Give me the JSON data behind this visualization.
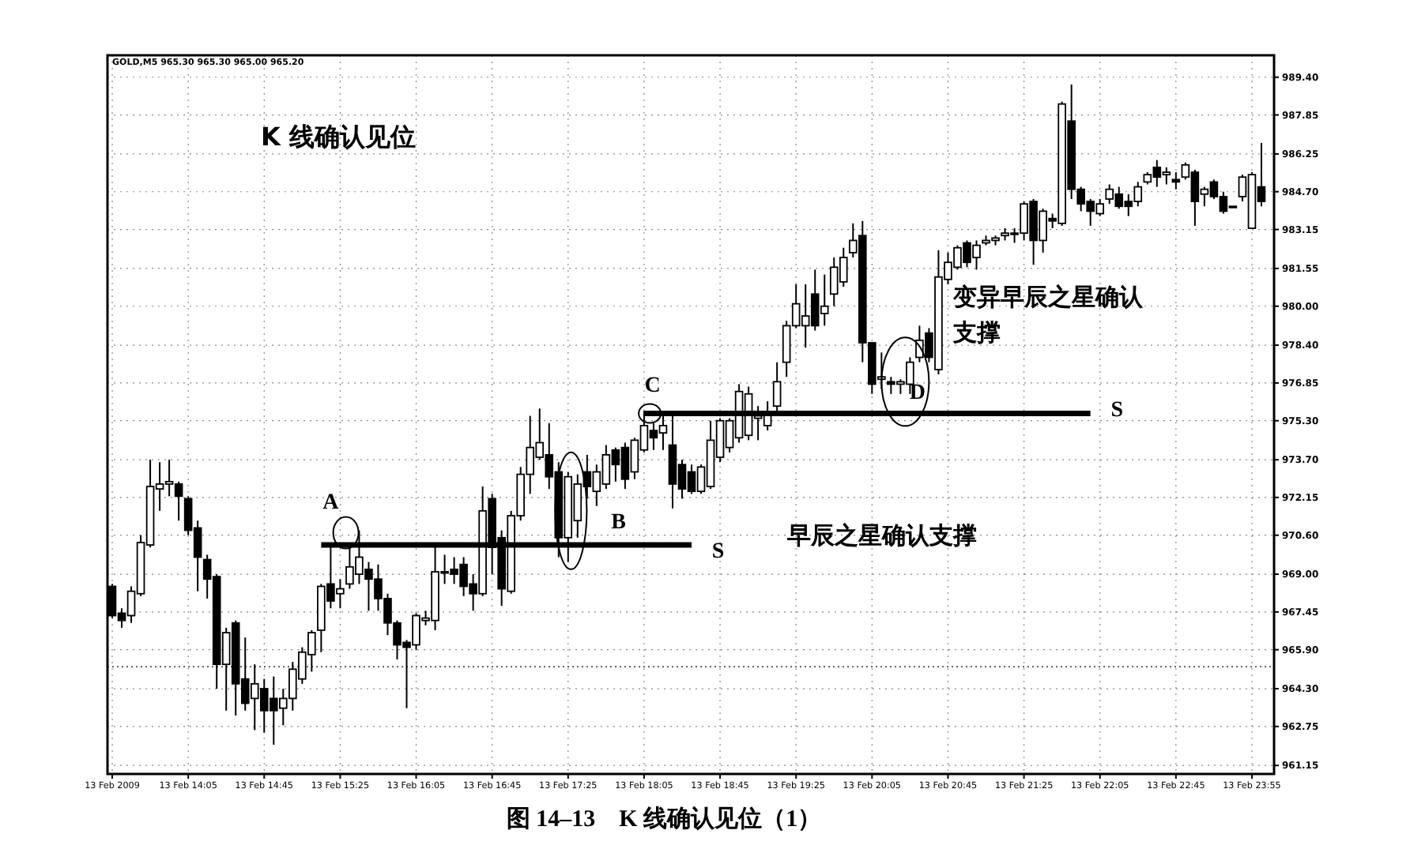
{
  "chart_data": {
    "type": "candlestick",
    "title": "K 线确认见位",
    "categories": [
      "13 Feb 2009",
      null,
      null,
      null,
      null,
      null,
      null,
      null,
      "13 Feb 14:05",
      null,
      null,
      null,
      null,
      null,
      null,
      null,
      "13 Feb 14:45",
      null,
      null,
      null,
      null,
      null,
      null,
      null,
      "13 Feb 15:25",
      null,
      null,
      null,
      null,
      null,
      null,
      null,
      "13 Feb 16:05",
      null,
      null,
      null,
      null,
      null,
      null,
      null,
      "13 Feb 16:45",
      null,
      null,
      null,
      null,
      null,
      null,
      null,
      "13 Feb 17:25",
      null,
      null,
      null,
      null,
      null,
      null,
      null,
      "13 Feb 18:05",
      null,
      null,
      null,
      null,
      null,
      null,
      null,
      "13 Feb 18:45",
      null,
      null,
      null,
      null,
      null,
      null,
      null,
      "13 Feb 19:25",
      null,
      null,
      null,
      null,
      null,
      null,
      null,
      "13 Feb 20:05",
      null,
      null,
      null,
      null,
      null,
      null,
      null,
      "13 Feb 20:45",
      null,
      null,
      null,
      null,
      null,
      null,
      null,
      "13 Feb 21:25",
      null,
      null,
      null,
      null,
      null,
      null,
      null,
      "13 Feb 22:05",
      null,
      null,
      null,
      null,
      null,
      null,
      null,
      "13 Feb 22:45",
      null,
      null,
      null,
      null,
      null,
      null,
      null,
      "13 Feb 23:55",
      null
    ],
    "ohlc": [
      [
        968.5,
        968.6,
        967.2,
        967.3
      ],
      [
        967.4,
        967.6,
        966.8,
        967.1
      ],
      [
        967.3,
        968.5,
        967.0,
        968.3
      ],
      [
        968.2,
        970.6,
        968.1,
        970.3
      ],
      [
        970.2,
        973.7,
        970.1,
        972.6
      ],
      [
        972.5,
        973.6,
        971.6,
        972.7
      ],
      [
        972.7,
        973.7,
        972.2,
        972.8
      ],
      [
        972.7,
        972.8,
        971.2,
        972.2
      ],
      [
        972.1,
        972.2,
        970.6,
        970.8
      ],
      [
        970.9,
        971.2,
        968.3,
        969.7
      ],
      [
        969.6,
        969.8,
        968.0,
        968.8
      ],
      [
        968.9,
        969.0,
        964.3,
        965.3
      ],
      [
        965.3,
        966.8,
        963.4,
        966.6
      ],
      [
        967.0,
        967.1,
        963.2,
        964.5
      ],
      [
        964.7,
        966.4,
        963.4,
        963.7
      ],
      [
        963.9,
        965.3,
        962.6,
        964.5
      ],
      [
        964.3,
        964.7,
        962.5,
        963.4
      ],
      [
        963.9,
        964.8,
        962.0,
        963.4
      ],
      [
        963.5,
        964.3,
        962.8,
        963.9
      ],
      [
        963.9,
        965.4,
        963.4,
        965.1
      ],
      [
        964.7,
        966.0,
        964.5,
        965.8
      ],
      [
        965.7,
        966.7,
        965.0,
        966.6
      ],
      [
        966.7,
        968.6,
        965.8,
        968.5
      ],
      [
        968.6,
        970.2,
        967.6,
        967.9
      ],
      [
        968.2,
        968.8,
        967.6,
        968.4
      ],
      [
        968.6,
        970.1,
        968.4,
        969.3
      ],
      [
        969.0,
        970.8,
        968.6,
        969.7
      ],
      [
        969.2,
        969.5,
        967.5,
        968.8
      ],
      [
        968.8,
        969.4,
        967.5,
        968.0
      ],
      [
        968.0,
        968.2,
        966.5,
        967.0
      ],
      [
        967.0,
        967.1,
        965.5,
        966.1
      ],
      [
        966.2,
        966.3,
        963.5,
        966.0
      ],
      [
        966.1,
        967.4,
        965.9,
        967.3
      ],
      [
        967.1,
        967.5,
        966.9,
        967.2
      ],
      [
        967.1,
        970.2,
        966.7,
        969.1
      ],
      [
        969.1,
        969.8,
        968.6,
        969.1
      ],
      [
        969.2,
        969.7,
        968.6,
        969.0
      ],
      [
        969.4,
        969.7,
        968.1,
        968.5
      ],
      [
        968.6,
        969.0,
        967.5,
        968.2
      ],
      [
        968.2,
        972.6,
        968.1,
        971.6
      ],
      [
        972.1,
        972.3,
        969.0,
        970.1
      ],
      [
        970.5,
        970.8,
        967.7,
        968.4
      ],
      [
        968.3,
        971.6,
        968.2,
        971.4
      ],
      [
        971.4,
        973.4,
        971.2,
        973.1
      ],
      [
        973.1,
        975.5,
        972.3,
        974.2
      ],
      [
        973.8,
        975.8,
        973.7,
        974.4
      ],
      [
        973.9,
        975.2,
        972.5,
        973.0
      ],
      [
        973.2,
        973.6,
        969.7,
        970.5
      ],
      [
        970.5,
        973.2,
        969.5,
        973.0
      ],
      [
        971.2,
        973.1,
        970.5,
        972.7
      ],
      [
        973.2,
        973.9,
        972.1,
        972.6
      ],
      [
        972.4,
        973.5,
        971.8,
        973.2
      ],
      [
        972.7,
        974.3,
        972.5,
        973.9
      ],
      [
        974.1,
        974.2,
        972.8,
        973.5
      ],
      [
        974.2,
        974.4,
        972.5,
        972.9
      ],
      [
        973.2,
        974.6,
        972.9,
        974.5
      ],
      [
        974.1,
        975.7,
        974.0,
        975.1
      ],
      [
        974.9,
        975.2,
        974.1,
        974.6
      ],
      [
        974.8,
        975.5,
        974.1,
        975.1
      ],
      [
        974.3,
        975.5,
        971.7,
        972.7
      ],
      [
        973.5,
        973.7,
        972.1,
        972.5
      ],
      [
        973.2,
        973.5,
        972.3,
        972.4
      ],
      [
        972.4,
        973.5,
        972.3,
        973.4
      ],
      [
        972.6,
        975.3,
        972.5,
        974.5
      ],
      [
        973.8,
        975.4,
        973.6,
        975.3
      ],
      [
        974.2,
        975.4,
        974.0,
        975.3
      ],
      [
        974.6,
        976.8,
        974.4,
        976.5
      ],
      [
        974.7,
        976.7,
        974.5,
        976.4
      ],
      [
        975.4,
        975.9,
        974.5,
        975.5
      ],
      [
        975.1,
        976.1,
        974.9,
        975.6
      ],
      [
        975.9,
        977.7,
        975.7,
        976.9
      ],
      [
        977.7,
        979.4,
        977.1,
        979.2
      ],
      [
        979.2,
        980.9,
        979.1,
        980.1
      ],
      [
        979.2,
        980.9,
        978.3,
        979.6
      ],
      [
        980.5,
        981.5,
        979.0,
        979.2
      ],
      [
        979.7,
        981.3,
        979.2,
        980.0
      ],
      [
        980.5,
        982.0,
        980.0,
        981.6
      ],
      [
        981.0,
        982.4,
        980.8,
        982.0
      ],
      [
        982.2,
        983.4,
        982.0,
        982.7
      ],
      [
        982.9,
        983.5,
        977.7,
        978.5
      ],
      [
        978.5,
        978.5,
        976.4,
        976.8
      ],
      [
        977.0,
        978.1,
        976.6,
        977.1
      ],
      [
        976.9,
        977.1,
        976.4,
        976.8
      ],
      [
        976.8,
        977.0,
        976.4,
        976.9
      ],
      [
        976.8,
        977.9,
        976.4,
        977.7
      ],
      [
        977.9,
        979.2,
        977.7,
        978.6
      ],
      [
        978.9,
        979.1,
        977.7,
        977.9
      ],
      [
        977.4,
        982.3,
        977.2,
        981.2
      ],
      [
        981.1,
        982.2,
        980.9,
        981.8
      ],
      [
        981.6,
        982.5,
        981.5,
        982.4
      ],
      [
        982.6,
        982.7,
        981.6,
        981.8
      ],
      [
        982.0,
        982.7,
        981.5,
        982.5
      ],
      [
        982.6,
        982.9,
        982.5,
        982.7
      ],
      [
        982.7,
        982.9,
        982.5,
        982.8
      ],
      [
        982.9,
        983.2,
        982.7,
        983.0
      ],
      [
        983.0,
        983.2,
        982.6,
        983.0
      ],
      [
        983.0,
        984.3,
        982.7,
        984.2
      ],
      [
        984.3,
        984.4,
        981.7,
        982.7
      ],
      [
        982.7,
        984.0,
        982.2,
        983.9
      ],
      [
        983.6,
        983.8,
        983.2,
        983.5
      ],
      [
        983.4,
        988.4,
        983.3,
        988.3
      ],
      [
        987.6,
        989.1,
        984.4,
        984.8
      ],
      [
        984.8,
        984.9,
        983.9,
        984.2
      ],
      [
        984.3,
        984.4,
        983.3,
        983.9
      ],
      [
        983.8,
        984.4,
        983.7,
        984.2
      ],
      [
        984.4,
        985.0,
        984.2,
        984.8
      ],
      [
        984.6,
        984.9,
        984.0,
        984.1
      ],
      [
        984.3,
        984.6,
        983.7,
        984.1
      ],
      [
        984.3,
        985.1,
        984.1,
        984.9
      ],
      [
        985.1,
        985.5,
        985.0,
        985.4
      ],
      [
        985.7,
        986.0,
        984.9,
        985.3
      ],
      [
        985.4,
        985.7,
        985.0,
        985.5
      ],
      [
        985.2,
        985.5,
        984.8,
        985.1
      ],
      [
        985.3,
        985.9,
        985.2,
        985.8
      ],
      [
        985.5,
        985.6,
        983.3,
        984.3
      ],
      [
        984.6,
        984.9,
        984.1,
        984.8
      ],
      [
        985.1,
        985.2,
        984.4,
        984.5
      ],
      [
        984.5,
        984.7,
        983.8,
        983.9
      ],
      [
        984.1,
        984.1,
        984.1,
        984.1
      ],
      [
        984.5,
        985.4,
        984.3,
        985.3
      ],
      [
        983.2,
        985.5,
        983.2,
        985.4
      ],
      [
        984.9,
        986.7,
        984.1,
        984.3
      ]
    ],
    "series": [
      {
        "type": "line",
        "color": "#000000",
        "values": [
          null,
          null,
          null,
          null,
          null,
          null,
          null,
          null,
          null,
          null,
          null,
          null,
          null,
          null,
          null,
          null,
          null,
          null,
          null,
          null,
          null,
          null,
          970.2,
          970.2,
          970.2,
          970.2,
          970.2,
          970.2,
          970.2,
          970.2,
          970.2,
          970.2,
          970.2,
          970.2,
          970.2,
          970.2,
          970.2,
          970.2,
          970.2,
          970.2,
          970.2,
          970.2,
          970.2,
          970.2,
          970.2,
          970.2,
          970.2,
          970.2,
          970.2,
          970.2,
          970.2,
          970.2,
          970.2,
          970.2,
          970.2,
          970.2,
          970.2,
          970.2,
          970.2,
          970.2,
          970.2,
          970.2,
          null,
          null,
          null,
          null,
          null,
          null,
          null,
          null,
          null,
          null,
          null,
          null,
          null,
          null,
          null,
          null,
          null,
          null,
          null,
          null,
          null,
          null,
          null,
          null,
          null,
          null,
          null,
          null,
          null,
          null,
          null,
          null,
          null,
          null,
          null,
          null,
          null,
          null,
          null,
          null,
          null,
          null,
          null,
          null,
          null,
          null,
          null,
          null,
          null,
          null,
          null,
          null,
          null,
          null,
          null,
          null,
          null,
          null,
          null,
          null
        ]
      },
      {
        "type": "line",
        "color": "#000000",
        "values": [
          null,
          null,
          null,
          null,
          null,
          null,
          null,
          null,
          null,
          null,
          null,
          null,
          null,
          null,
          null,
          null,
          null,
          null,
          null,
          null,
          null,
          null,
          null,
          null,
          null,
          null,
          null,
          null,
          null,
          null,
          null,
          null,
          null,
          null,
          null,
          null,
          null,
          null,
          null,
          null,
          null,
          null,
          null,
          null,
          null,
          null,
          null,
          null,
          null,
          null,
          null,
          null,
          null,
          null,
          null,
          null,
          975.6,
          975.6,
          975.6,
          975.6,
          975.6,
          975.6,
          975.6,
          975.6,
          975.6,
          975.6,
          975.6,
          975.6,
          975.6,
          975.6,
          975.6,
          975.6,
          975.6,
          975.6,
          975.6,
          975.6,
          975.6,
          975.6,
          975.6,
          975.6,
          975.6,
          975.6,
          975.6,
          975.6,
          975.6,
          975.6,
          975.6,
          975.6,
          975.6,
          975.6,
          975.6,
          975.6,
          975.6,
          975.6,
          975.6,
          975.6,
          975.6,
          975.6,
          975.6,
          975.6,
          975.6,
          975.6,
          975.6,
          975.6,
          null,
          null,
          null,
          null,
          null,
          null,
          null,
          null,
          null,
          null,
          null,
          null,
          null,
          null,
          null,
          null,
          null,
          null
        ]
      }
    ],
    "ylim": [
      960.8,
      990.3
    ],
    "yticks": [
      {
        "value": 961.15,
        "label": "961.15"
      },
      {
        "value": 962.75,
        "label": "962.75"
      },
      {
        "value": 964.3,
        "label": "964.30"
      },
      {
        "value": 965.9,
        "label": "965.90"
      },
      {
        "value": 967.45,
        "label": "967.45"
      },
      {
        "value": 969.0,
        "label": "969.00"
      },
      {
        "value": 970.6,
        "label": "970.60"
      },
      {
        "value": 972.15,
        "label": "972.15"
      },
      {
        "value": 973.7,
        "label": "973.70"
      },
      {
        "value": 975.3,
        "label": "975.30"
      },
      {
        "value": 976.85,
        "label": "976.85"
      },
      {
        "value": 978.4,
        "label": "978.40"
      },
      {
        "value": 980.0,
        "label": "980.00"
      },
      {
        "value": 981.55,
        "label": "981.55"
      },
      {
        "value": 983.15,
        "label": "983.15"
      },
      {
        "value": 984.7,
        "label": "984.70"
      },
      {
        "value": 986.25,
        "label": "986.25"
      },
      {
        "value": 987.85,
        "label": "987.85"
      },
      {
        "value": 989.4,
        "label": "989.40"
      }
    ],
    "grid": true,
    "ref_lines": [
      {
        "axis": "y",
        "value": 965.2,
        "line_style": "dotted"
      }
    ],
    "annotations": [
      "GOLD,M5 965.30 965.30 965.00 965.20",
      "A",
      "B",
      "C",
      "D",
      "S",
      "S",
      "早辰之星确认支撑",
      "变异早辰之星确认支撑",
      "图 14–13　K 线确认见位（1）"
    ]
  }
}
